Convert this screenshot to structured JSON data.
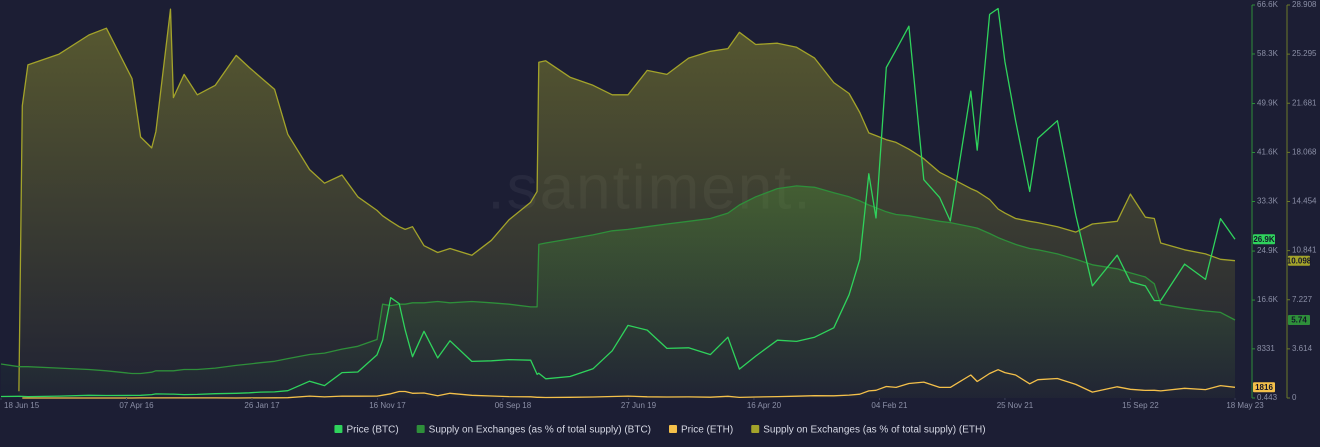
{
  "chart_data": {
    "type": "line",
    "watermark": ".santiment.",
    "x": [
      "2015-06-18",
      "2015-07-30",
      "2015-08-07",
      "2015-08-20",
      "2015-11-01",
      "2016-01-10",
      "2016-02-20",
      "2016-04-20",
      "2016-05-10",
      "2016-06-05",
      "2016-06-15",
      "2016-07-19",
      "2016-07-26",
      "2016-08-20",
      "2016-09-20",
      "2016-11-01",
      "2016-12-20",
      "2017-01-20",
      "2017-02-15",
      "2017-03-20",
      "2017-04-20",
      "2017-06-10",
      "2017-07-15",
      "2017-08-25",
      "2017-10-01",
      "2017-11-15",
      "2017-11-28",
      "2017-12-17",
      "2018-01-06",
      "2018-01-20",
      "2018-02-06",
      "2018-03-05",
      "2018-04-06",
      "2018-05-05",
      "2018-06-25",
      "2018-08-10",
      "2018-09-20",
      "2018-11-10",
      "2018-11-25",
      "2018-11-29",
      "2018-12-15",
      "2019-02-10",
      "2019-04-05",
      "2019-05-20",
      "2019-06-26",
      "2019-08-10",
      "2019-09-25",
      "2019-11-15",
      "2020-01-05",
      "2020-02-15",
      "2020-03-13",
      "2020-04-20",
      "2020-06-10",
      "2020-07-25",
      "2020-09-05",
      "2020-10-20",
      "2020-11-25",
      "2020-12-20",
      "2021-01-10",
      "2021-01-27",
      "2021-02-20",
      "2021-03-15",
      "2021-04-14",
      "2021-05-19",
      "2021-06-25",
      "2021-07-20",
      "2021-09-06",
      "2021-09-21",
      "2021-10-20",
      "2021-11-09",
      "2021-11-25",
      "2021-12-20",
      "2022-01-22",
      "2022-02-10",
      "2022-03-28",
      "2022-05-10",
      "2022-06-18",
      "2022-08-15",
      "2022-09-15",
      "2022-10-20",
      "2022-11-10",
      "2022-11-25",
      "2023-01-20",
      "2023-03-10",
      "2023-04-14",
      "2023-05-18"
    ],
    "xlim": [
      "2015-06-18",
      "2023-05-18"
    ],
    "xticks": [
      {
        "value": "2015-06-18",
        "label": "18 Jun 15"
      },
      {
        "value": "2016-04-07",
        "label": "07 Apr 16"
      },
      {
        "value": "2017-01-26",
        "label": "26 Jan 17"
      },
      {
        "value": "2017-11-16",
        "label": "16 Nov 17"
      },
      {
        "value": "2018-09-06",
        "label": "06 Sep 18"
      },
      {
        "value": "2019-06-27",
        "label": "27 Jun 19"
      },
      {
        "value": "2020-04-16",
        "label": "16 Apr 20"
      },
      {
        "value": "2021-02-04",
        "label": "04 Feb 21"
      },
      {
        "value": "2021-11-25",
        "label": "25 Nov 21"
      },
      {
        "value": "2022-09-15",
        "label": "15 Sep 22"
      },
      {
        "value": "2023-05-18",
        "label": "18 May 23"
      }
    ],
    "ylim": [
      0.443,
      66600
    ],
    "yticks": [
      {
        "value": 66600,
        "label": "66.6K"
      },
      {
        "value": 58300,
        "label": "58.3K"
      },
      {
        "value": 49900,
        "label": "49.9K"
      },
      {
        "value": 41600,
        "label": "41.6K"
      },
      {
        "value": 33300,
        "label": "33.3K"
      },
      {
        "value": 24900,
        "label": "24.9K"
      },
      {
        "value": 16600,
        "label": "16.6K"
      },
      8331,
      0.443
    ],
    "y2lim": [
      0,
      28.908
    ],
    "y2ticks": [
      28.908,
      25.295,
      21.681,
      18.068,
      14.454,
      10.841,
      7.227,
      3.614,
      0
    ],
    "grid": false,
    "legend": "bottom",
    "series": [
      {
        "name": "Price (BTC)",
        "color": "#2fd35c",
        "axis": "y",
        "fill": false,
        "last_value_label": "26.9K",
        "values": [
          250,
          285,
          280,
          235,
          320,
          450,
          430,
          440,
          455,
          580,
          700,
          660,
          655,
          580,
          610,
          730,
          790,
          890,
          1000,
          1030,
          1230,
          2850,
          2100,
          4300,
          4400,
          7300,
          9800,
          17000,
          16000,
          11500,
          7000,
          11300,
          6800,
          9700,
          6200,
          6300,
          6500,
          6400,
          4000,
          4200,
          3250,
          3650,
          4950,
          8000,
          12300,
          11500,
          8400,
          8500,
          7350,
          10300,
          4900,
          7100,
          9800,
          9600,
          10300,
          11900,
          17500,
          23500,
          38000,
          30500,
          56000,
          59000,
          63000,
          37000,
          34000,
          30000,
          52000,
          42000,
          65000,
          66000,
          57000,
          47000,
          35000,
          44000,
          47000,
          31000,
          19000,
          24200,
          19700,
          19000,
          16500,
          16500,
          22700,
          20100,
          30400,
          26900
        ]
      },
      {
        "name": "Supply on Exchanges (as % of total supply) (BTC)",
        "color": "#2e8f3a",
        "axis": "y2",
        "fill": true,
        "values": [
          2.5,
          2.3,
          2.3,
          2.3,
          2.2,
          2.1,
          2.0,
          1.8,
          1.8,
          1.9,
          2.0,
          2.0,
          2.0,
          2.1,
          2.1,
          2.2,
          2.4,
          2.5,
          2.6,
          2.7,
          2.9,
          3.2,
          3.3,
          3.6,
          3.8,
          4.3,
          6.9,
          6.8,
          6.9,
          6.9,
          7.0,
          7.0,
          7.1,
          7.0,
          7.1,
          7.0,
          6.9,
          6.7,
          6.7,
          11.3,
          11.4,
          11.7,
          12.0,
          12.3,
          12.4,
          12.6,
          12.8,
          13.0,
          13.2,
          13.6,
          14.2,
          14.8,
          15.4,
          15.6,
          15.5,
          15.1,
          14.8,
          14.5,
          14.2,
          14.0,
          13.7,
          13.5,
          13.4,
          13.2,
          13.0,
          12.9,
          12.6,
          12.5,
          12.1,
          11.8,
          11.6,
          11.3,
          11.0,
          10.9,
          10.6,
          10.2,
          9.8,
          9.5,
          9.2,
          8.9,
          8.4,
          6.9,
          6.6,
          6.4,
          6.3,
          5.74
        ]
      },
      {
        "name": "Price (ETH)",
        "color": "#f4c04a",
        "axis": "y",
        "fill": false,
        "values": [
          null,
          null,
          3,
          1.3,
          1,
          1,
          4,
          8,
          10,
          14,
          18,
          12,
          12,
          11,
          13,
          11,
          7.5,
          10.5,
          13,
          42,
          48,
          330,
          190,
          330,
          300,
          330,
          480,
          720,
          1100,
          1100,
          800,
          850,
          380,
          800,
          450,
          340,
          230,
          210,
          120,
          115,
          85,
          120,
          165,
          250,
          320,
          210,
          170,
          185,
          135,
          285,
          110,
          170,
          245,
          310,
          390,
          375,
          500,
          650,
          1200,
          1300,
          1950,
          1800,
          2450,
          2700,
          1800,
          1800,
          3900,
          2800,
          4150,
          4800,
          4300,
          3900,
          2400,
          3100,
          3300,
          2300,
          1000,
          1900,
          1470,
          1290,
          1300,
          1200,
          1650,
          1430,
          2100,
          1816
        ]
      },
      {
        "name": "Supply on Exchanges (as % of total supply) (ETH)",
        "color": "#a3a32a",
        "axis": "y2",
        "fill": true,
        "values": [
          null,
          0.5,
          21.5,
          24.5,
          25.3,
          26.7,
          27.2,
          23.5,
          19.2,
          18.4,
          19.6,
          28.6,
          22.1,
          23.8,
          22.3,
          23.0,
          25.2,
          24.3,
          23.6,
          22.7,
          19.4,
          16.8,
          15.8,
          16.4,
          14.8,
          13.8,
          13.4,
          13.0,
          12.6,
          12.4,
          12.6,
          11.2,
          10.7,
          11.0,
          10.5,
          11.6,
          13.1,
          14.4,
          15.2,
          24.7,
          24.8,
          23.6,
          23.0,
          22.3,
          22.3,
          24.1,
          23.8,
          25.0,
          25.5,
          25.7,
          26.9,
          26.0,
          26.1,
          25.8,
          25.0,
          23.2,
          22.4,
          21.0,
          19.5,
          19.3,
          19.0,
          18.8,
          18.3,
          17.6,
          16.6,
          16.2,
          15.4,
          15.2,
          14.6,
          13.9,
          13.6,
          13.2,
          13.0,
          12.9,
          12.6,
          12.2,
          12.8,
          13.0,
          15.0,
          13.3,
          13.2,
          11.4,
          10.9,
          10.6,
          10.2,
          10.098
        ]
      }
    ]
  }
}
